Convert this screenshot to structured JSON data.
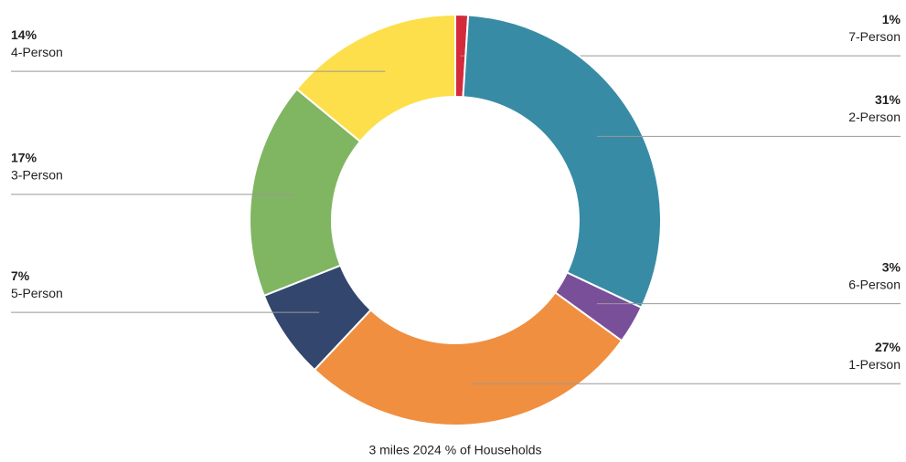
{
  "chart_data": {
    "type": "donut",
    "title": "3 miles 2024 % of Households",
    "categories": [
      "7-Person",
      "2-Person",
      "6-Person",
      "1-Person",
      "5-Person",
      "3-Person",
      "4-Person"
    ],
    "values": [
      1,
      31,
      3,
      27,
      7,
      17,
      14
    ],
    "value_labels": [
      "1%",
      "31%",
      "3%",
      "27%",
      "7%",
      "17%",
      "14%"
    ],
    "colors": [
      "#d42a3c",
      "#388ba5",
      "#7a4f9a",
      "#f08f3f",
      "#32466e",
      "#80b562",
      "#fddf4b"
    ]
  }
}
